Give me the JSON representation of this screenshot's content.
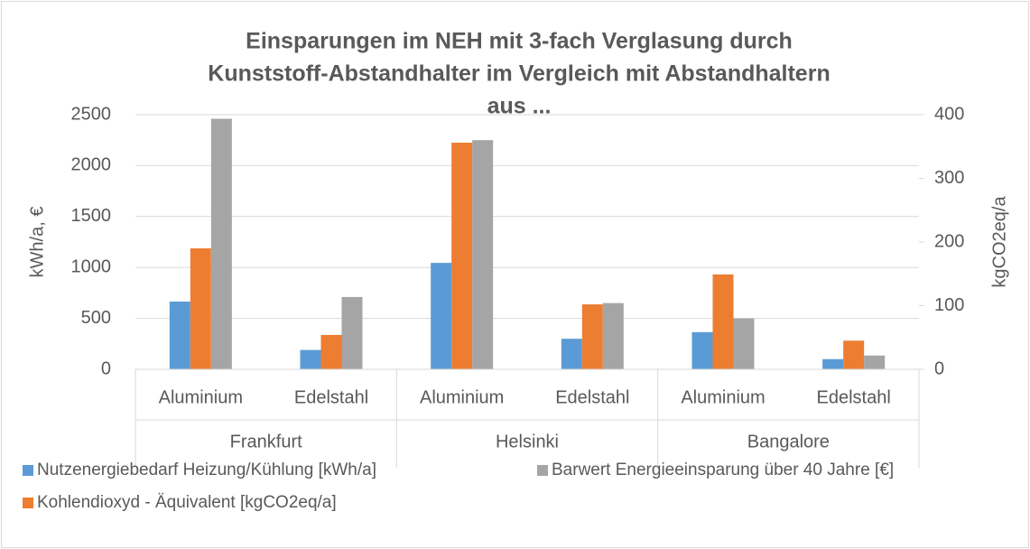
{
  "chart_data": {
    "type": "bar",
    "title": [
      "Einsparungen im NEH mit 3-fach Verglasung durch",
      "Kunststoff-Abstandhalter im Vergleich mit Abstandhaltern",
      "aus ..."
    ],
    "categories": [
      "Aluminium",
      "Edelstahl",
      "Aluminium",
      "Edelstahl",
      "Aluminium",
      "Edelstahl"
    ],
    "groups": [
      "Frankfurt",
      "Helsinki",
      "Bangalore"
    ],
    "ylabel": "kWh/a, €",
    "y2label": "kgCO2eq/a",
    "ylim": [
      0,
      2500
    ],
    "yticks": [
      0,
      500,
      1000,
      1500,
      2000,
      2500
    ],
    "y2lim": [
      0,
      400
    ],
    "y2ticks": [
      0,
      100,
      200,
      300,
      400
    ],
    "grid": true,
    "series": [
      {
        "name": "Nutzenergiebedarf Heizung/Kühlung [kWh/a]",
        "color": "#5b9bd5",
        "values": [
          665,
          190,
          1045,
          300,
          365,
          100
        ]
      },
      {
        "name": "Kohlendioxyd - Äquivalent [kgCO2eq/a]",
        "color": "#ed7d31",
        "axis": "y2",
        "values": [
          190,
          54,
          356,
          102,
          149,
          45
        ]
      },
      {
        "name": "Barwert Energieeinsparung über 40 Jahre [€]",
        "color": "#a5a5a5",
        "values": [
          2460,
          710,
          2250,
          650,
          500,
          135
        ]
      }
    ]
  }
}
